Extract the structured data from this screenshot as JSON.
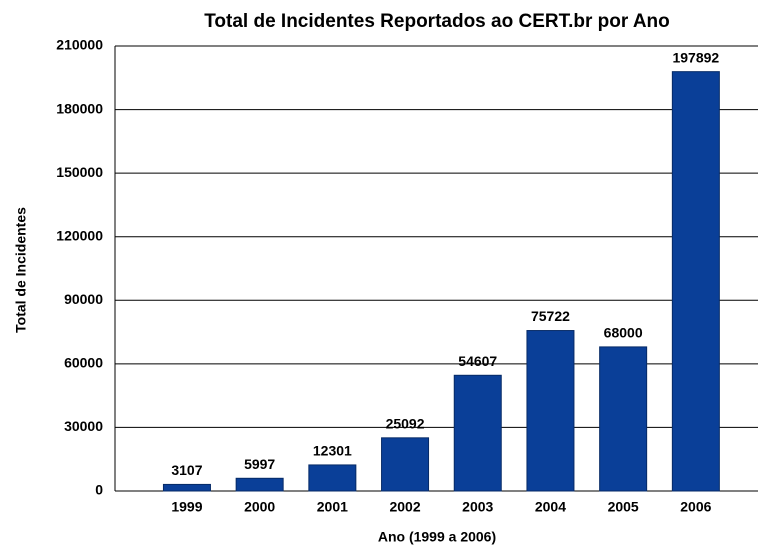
{
  "chart_data": {
    "type": "bar",
    "title": "Total de Incidentes Reportados ao CERT.br por Ano",
    "x_label": "Ano (1999 a 2006)",
    "y_label": "Total de Incidentes",
    "categories": [
      "1999",
      "2000",
      "2001",
      "2002",
      "2003",
      "2004",
      "2005",
      "2006"
    ],
    "values": [
      3107,
      5997,
      12301,
      25092,
      54607,
      75722,
      68000,
      197892
    ],
    "color": "#0a3f98",
    "ylim": [
      0,
      210000
    ],
    "yticks": [
      0,
      30000,
      60000,
      90000,
      120000,
      150000,
      180000,
      210000
    ],
    "grid": true
  }
}
